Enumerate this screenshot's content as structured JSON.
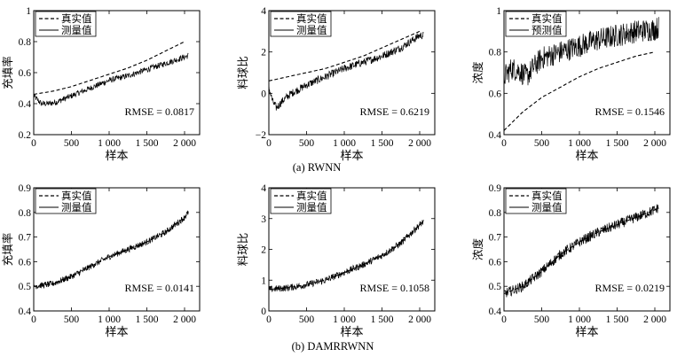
{
  "captions": [
    "(a) RWNN",
    "(b) DAMRRWNN"
  ],
  "chart_data": [
    {
      "type": "line",
      "panel": "a",
      "ylabel": "充填率",
      "xlabel": "样本",
      "xlim": [
        0,
        2200
      ],
      "ylim": [
        0.2,
        1.0
      ],
      "xticks": [
        0,
        500,
        1000,
        1500,
        2000
      ],
      "xtick_labels": [
        "0",
        "500",
        "1 000",
        "1 500",
        "2 000"
      ],
      "yticks": [
        0.2,
        0.4,
        0.6,
        0.8,
        1.0
      ],
      "ytick_labels": [
        "0.2",
        "0.4",
        "0.6",
        "0.8",
        "1"
      ],
      "legend": [
        "真实值",
        "测量值"
      ],
      "legend_position": "top-left",
      "rmse_label": "RMSE = 0.0817",
      "series": [
        {
          "name": "真实值",
          "style": "dashed",
          "x": [
            0,
            250,
            500,
            750,
            1000,
            1250,
            1500,
            1750,
            2000
          ],
          "y": [
            0.46,
            0.48,
            0.51,
            0.55,
            0.59,
            0.63,
            0.68,
            0.74,
            0.8
          ]
        },
        {
          "name": "测量值",
          "style": "solid-noisy",
          "x": [
            0,
            100,
            200,
            300,
            400,
            500,
            750,
            1000,
            1250,
            1500,
            1750,
            2000,
            2050
          ],
          "y": [
            0.45,
            0.4,
            0.4,
            0.41,
            0.43,
            0.45,
            0.5,
            0.55,
            0.58,
            0.62,
            0.66,
            0.7,
            0.71
          ],
          "noise": 0.012
        }
      ]
    },
    {
      "type": "line",
      "panel": "a",
      "ylabel": "料球比",
      "xlabel": "样本",
      "xlim": [
        0,
        2200
      ],
      "ylim": [
        -2,
        4
      ],
      "xticks": [
        0,
        500,
        1000,
        1500,
        2000
      ],
      "xtick_labels": [
        "0",
        "500",
        "1 000",
        "1 500",
        "2 000"
      ],
      "yticks": [
        -2,
        0,
        2,
        4
      ],
      "ytick_labels": [
        "−2",
        "0",
        "2",
        "4"
      ],
      "legend": [
        "真实值",
        "测量值"
      ],
      "legend_position": "top-left",
      "rmse_label": "RMSE = 0.6219",
      "series": [
        {
          "name": "真实值",
          "style": "dashed",
          "x": [
            0,
            250,
            500,
            750,
            1000,
            1250,
            1500,
            1750,
            2000
          ],
          "y": [
            0.6,
            0.8,
            1.0,
            1.2,
            1.5,
            1.8,
            2.2,
            2.6,
            3.0
          ]
        },
        {
          "name": "测量值",
          "style": "solid-noisy",
          "x": [
            0,
            50,
            100,
            150,
            200,
            300,
            500,
            750,
            1000,
            1250,
            1500,
            1750,
            2000,
            2050
          ],
          "y": [
            0.3,
            -0.4,
            -0.7,
            -0.5,
            -0.3,
            0.0,
            0.4,
            0.8,
            1.2,
            1.5,
            1.8,
            2.2,
            2.8,
            2.8
          ],
          "noise": 0.12
        }
      ]
    },
    {
      "type": "line",
      "panel": "a",
      "ylabel": "浓度",
      "xlabel": "样本",
      "xlim": [
        0,
        2200
      ],
      "ylim": [
        0.4,
        1.0
      ],
      "xticks": [
        0,
        500,
        1000,
        1500,
        2000
      ],
      "xtick_labels": [
        "0",
        "500",
        "1 000",
        "1 500",
        "2 000"
      ],
      "yticks": [
        0.4,
        0.6,
        0.8,
        1.0
      ],
      "ytick_labels": [
        "0.4",
        "0.6",
        "0.8",
        "1"
      ],
      "legend": [
        "真实值",
        "预测值"
      ],
      "legend_position": "top-left",
      "rmse_label": "RMSE = 0.1546",
      "series": [
        {
          "name": "真实值",
          "style": "dashed",
          "x": [
            0,
            250,
            500,
            750,
            1000,
            1250,
            1500,
            1750,
            2000
          ],
          "y": [
            0.42,
            0.51,
            0.58,
            0.63,
            0.68,
            0.72,
            0.75,
            0.78,
            0.8
          ]
        },
        {
          "name": "预测值",
          "style": "solid-noisy",
          "x": [
            0,
            100,
            200,
            300,
            400,
            500,
            750,
            1000,
            1250,
            1500,
            1750,
            2000,
            2050
          ],
          "y": [
            0.68,
            0.72,
            0.71,
            0.68,
            0.73,
            0.77,
            0.8,
            0.83,
            0.86,
            0.88,
            0.9,
            0.91,
            0.92
          ],
          "noise": 0.035
        }
      ]
    },
    {
      "type": "line",
      "panel": "b",
      "ylabel": "充填率",
      "xlabel": "样本",
      "xlim": [
        0,
        2200
      ],
      "ylim": [
        0.4,
        0.9
      ],
      "xticks": [
        0,
        500,
        1000,
        1500,
        2000
      ],
      "xtick_labels": [
        "0",
        "500",
        "1 000",
        "1 500",
        "2 000"
      ],
      "yticks": [
        0.4,
        0.5,
        0.6,
        0.7,
        0.8,
        0.9
      ],
      "ytick_labels": [
        "0.4",
        "0.5",
        "0.6",
        "0.7",
        "0.8",
        "0.9"
      ],
      "legend": [
        "真实值",
        "测量值"
      ],
      "legend_position": "top-left",
      "rmse_label": "RMSE = 0.0141",
      "series": [
        {
          "name": "真实值",
          "style": "dashed",
          "x": [
            0,
            250,
            500,
            750,
            1000,
            1250,
            1500,
            1750,
            2000,
            2050
          ],
          "y": [
            0.5,
            0.51,
            0.54,
            0.58,
            0.62,
            0.65,
            0.68,
            0.72,
            0.78,
            0.8
          ]
        },
        {
          "name": "测量值",
          "style": "solid-noisy",
          "x": [
            0,
            250,
            500,
            750,
            1000,
            1250,
            1500,
            1750,
            2000,
            2050
          ],
          "y": [
            0.5,
            0.51,
            0.54,
            0.58,
            0.62,
            0.65,
            0.68,
            0.72,
            0.78,
            0.8
          ],
          "noise": 0.008
        }
      ]
    },
    {
      "type": "line",
      "panel": "b",
      "ylabel": "料球比",
      "xlabel": "样本",
      "xlim": [
        0,
        2200
      ],
      "ylim": [
        0,
        4
      ],
      "xticks": [
        0,
        500,
        1000,
        1500,
        2000
      ],
      "xtick_labels": [
        "0",
        "500",
        "1 000",
        "1 500",
        "2 000"
      ],
      "yticks": [
        0,
        1,
        2,
        3,
        4
      ],
      "ytick_labels": [
        "0",
        "1",
        "2",
        "3",
        "4"
      ],
      "legend": [
        "真实值",
        "测量值"
      ],
      "legend_position": "top-left",
      "rmse_label": "RMSE = 0.1058",
      "series": [
        {
          "name": "真实值",
          "style": "dashed",
          "x": [
            0,
            250,
            500,
            750,
            1000,
            1250,
            1500,
            1750,
            2000,
            2050
          ],
          "y": [
            0.7,
            0.75,
            0.85,
            1.0,
            1.25,
            1.5,
            1.8,
            2.2,
            2.8,
            2.9
          ]
        },
        {
          "name": "测量值",
          "style": "solid-noisy",
          "x": [
            0,
            250,
            500,
            750,
            1000,
            1250,
            1500,
            1750,
            2000,
            2050
          ],
          "y": [
            0.7,
            0.75,
            0.85,
            1.0,
            1.25,
            1.5,
            1.8,
            2.2,
            2.8,
            2.9
          ],
          "noise": 0.07
        }
      ]
    },
    {
      "type": "line",
      "panel": "b",
      "ylabel": "浓度",
      "xlabel": "样本",
      "xlim": [
        0,
        2200
      ],
      "ylim": [
        0.4,
        0.9
      ],
      "xticks": [
        0,
        500,
        1000,
        1500,
        2000
      ],
      "xtick_labels": [
        "0",
        "500",
        "1 000",
        "1 500",
        "2 000"
      ],
      "yticks": [
        0.4,
        0.5,
        0.6,
        0.7,
        0.8,
        0.9
      ],
      "ytick_labels": [
        "0.4",
        "0.5",
        "0.6",
        "0.7",
        "0.8",
        "0.9"
      ],
      "legend": [
        "真实值",
        "测量值"
      ],
      "legend_position": "top-left",
      "rmse_label": "RMSE = 0.0219",
      "series": [
        {
          "name": "真实值",
          "style": "dashed",
          "x": [
            0,
            250,
            500,
            750,
            1000,
            1250,
            1500,
            1750,
            2000,
            2050
          ],
          "y": [
            0.47,
            0.5,
            0.56,
            0.63,
            0.68,
            0.72,
            0.75,
            0.78,
            0.81,
            0.82
          ]
        },
        {
          "name": "测量值",
          "style": "solid-noisy",
          "x": [
            0,
            250,
            500,
            750,
            1000,
            1250,
            1500,
            1750,
            2000,
            2050
          ],
          "y": [
            0.47,
            0.5,
            0.56,
            0.63,
            0.68,
            0.72,
            0.75,
            0.78,
            0.81,
            0.82
          ],
          "noise": 0.013
        }
      ]
    }
  ]
}
